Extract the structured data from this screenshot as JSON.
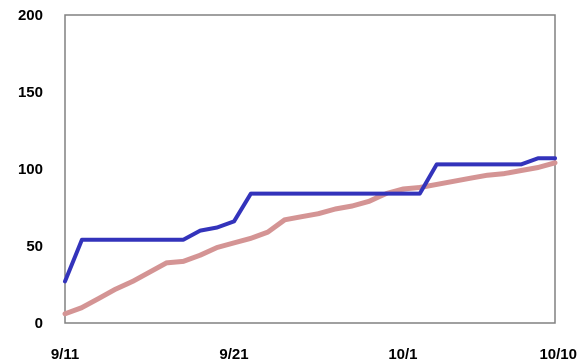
{
  "chart_data": {
    "type": "line",
    "title": "",
    "xlabel": "",
    "ylabel": "",
    "xlim": [
      "2013-09-11",
      "2013-10-10"
    ],
    "ylim": [
      0,
      200
    ],
    "grid": false,
    "y_ticks": [
      0,
      50,
      100,
      150,
      200
    ],
    "y_tick_labels": [
      "0",
      "50",
      "100",
      "150",
      "200"
    ],
    "x_ticks": [
      "2013-09-11",
      "2013-09-21",
      "2013-10-01",
      "2013-10-10"
    ],
    "x_tick_labels": [
      "9/11",
      "9/21",
      "10/1",
      "10/10"
    ],
    "series": [
      {
        "color": "#3333bb",
        "points": [
          [
            "2013-09-11",
            27
          ],
          [
            "2013-09-12",
            54
          ],
          [
            "2013-09-13",
            54
          ],
          [
            "2013-09-14",
            54
          ],
          [
            "2013-09-15",
            54
          ],
          [
            "2013-09-16",
            54
          ],
          [
            "2013-09-17",
            54
          ],
          [
            "2013-09-18",
            54
          ],
          [
            "2013-09-19",
            60
          ],
          [
            "2013-09-20",
            62
          ],
          [
            "2013-09-21",
            66
          ],
          [
            "2013-09-22",
            84
          ],
          [
            "2013-09-23",
            84
          ],
          [
            "2013-09-24",
            84
          ],
          [
            "2013-09-25",
            84
          ],
          [
            "2013-09-26",
            84
          ],
          [
            "2013-09-27",
            84
          ],
          [
            "2013-09-28",
            84
          ],
          [
            "2013-09-29",
            84
          ],
          [
            "2013-09-30",
            84
          ],
          [
            "2013-10-01",
            84
          ],
          [
            "2013-10-02",
            84
          ],
          [
            "2013-10-03",
            103
          ],
          [
            "2013-10-04",
            103
          ],
          [
            "2013-10-05",
            103
          ],
          [
            "2013-10-06",
            103
          ],
          [
            "2013-10-07",
            103
          ],
          [
            "2013-10-08",
            103
          ],
          [
            "2013-10-09",
            107
          ],
          [
            "2013-10-10",
            107
          ]
        ]
      },
      {
        "color": "#d49494",
        "points": [
          [
            "2013-09-11",
            6
          ],
          [
            "2013-09-12",
            10
          ],
          [
            "2013-09-13",
            16
          ],
          [
            "2013-09-14",
            22
          ],
          [
            "2013-09-15",
            27
          ],
          [
            "2013-09-16",
            33
          ],
          [
            "2013-09-17",
            39
          ],
          [
            "2013-09-18",
            40
          ],
          [
            "2013-09-19",
            44
          ],
          [
            "2013-09-20",
            49
          ],
          [
            "2013-09-21",
            52
          ],
          [
            "2013-09-22",
            55
          ],
          [
            "2013-09-23",
            59
          ],
          [
            "2013-09-24",
            67
          ],
          [
            "2013-09-25",
            69
          ],
          [
            "2013-09-26",
            71
          ],
          [
            "2013-09-27",
            74
          ],
          [
            "2013-09-28",
            76
          ],
          [
            "2013-09-29",
            79
          ],
          [
            "2013-09-30",
            84
          ],
          [
            "2013-10-01",
            87
          ],
          [
            "2013-10-02",
            88
          ],
          [
            "2013-10-03",
            90
          ],
          [
            "2013-10-04",
            92
          ],
          [
            "2013-10-05",
            94
          ],
          [
            "2013-10-06",
            96
          ],
          [
            "2013-10-07",
            97
          ],
          [
            "2013-10-08",
            99
          ],
          [
            "2013-10-09",
            101
          ],
          [
            "2013-10-10",
            104
          ]
        ]
      }
    ]
  }
}
